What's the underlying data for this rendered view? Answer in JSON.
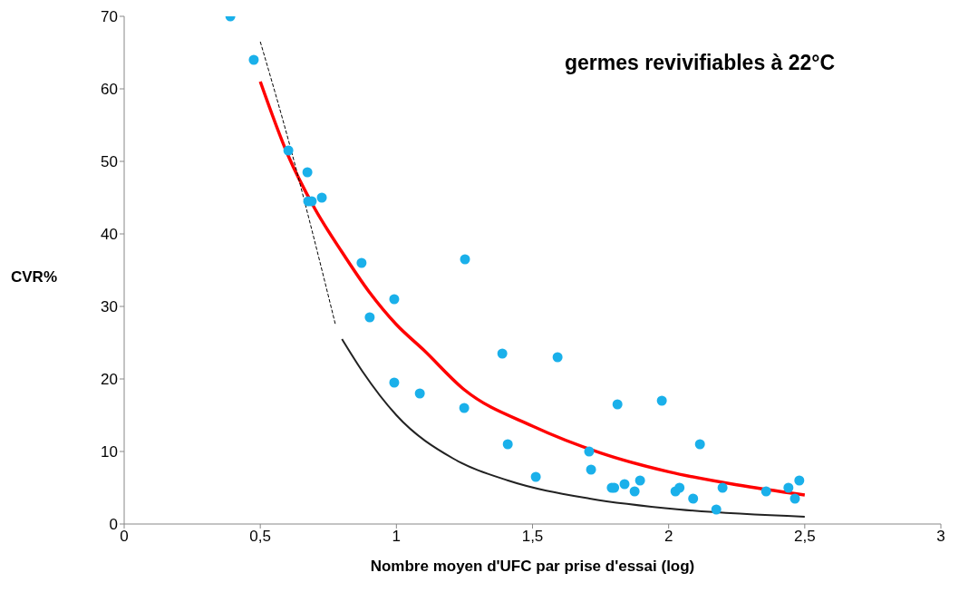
{
  "chart_data": {
    "type": "scatter",
    "title": "germes revivifiables à 22°C",
    "xlabel": "Nombre moyen d'UFC par prise d'essai (log)",
    "ylabel": "CVR%",
    "xlim": [
      0,
      3
    ],
    "xticks": [
      0,
      {
        "value": 0.5,
        "label": "0,5"
      },
      1,
      {
        "value": 1.5,
        "label": "1,5"
      },
      2,
      {
        "value": 2.5,
        "label": "2,5"
      },
      3
    ],
    "ylim": [
      0,
      70
    ],
    "yticks": [
      0,
      10,
      20,
      30,
      40,
      50,
      60,
      70
    ],
    "grid": false,
    "legend": false,
    "series": [
      {
        "color": "#1ab0ea",
        "marker": "circle",
        "x": [
          0.39,
          0.476,
          0.603,
          0.673,
          0.676,
          0.689,
          0.726,
          0.872,
          0.992,
          0.902,
          0.992,
          1.086,
          1.252,
          1.249,
          1.389,
          1.409,
          1.512,
          1.592,
          1.708,
          1.715,
          1.791,
          1.8,
          1.812,
          1.838,
          1.875,
          1.895,
          1.975,
          2.025,
          2.04,
          2.09,
          2.115,
          2.175,
          2.198,
          2.358,
          2.44,
          2.464,
          2.48
        ],
        "values": [
          70,
          64,
          51.5,
          48.5,
          44.5,
          44.5,
          45,
          36,
          31,
          28.5,
          19.5,
          18,
          36.5,
          16,
          23.5,
          11,
          6.5,
          23,
          10,
          7.5,
          5,
          5,
          16.5,
          5.5,
          4.5,
          6,
          17,
          4.5,
          5,
          3.5,
          11,
          2,
          5,
          4.5,
          5,
          3.5,
          6
        ]
      },
      {
        "type": "line",
        "color": "#ff0000",
        "marker": "none",
        "line_style": "solid",
        "x": [
          0.5,
          0.6,
          0.7,
          0.8,
          0.9,
          1.0,
          1.1,
          1.25,
          1.5,
          1.75,
          2.0,
          2.25,
          2.5
        ],
        "values": [
          61,
          51,
          43.5,
          37.5,
          32,
          27.5,
          24,
          18.5,
          13.5,
          9.8,
          7.2,
          5.4,
          4
        ]
      },
      {
        "type": "line",
        "color": "#000000",
        "marker": "none",
        "line_style": "dashed",
        "x": [
          0.5,
          0.61,
          0.693,
          0.776
        ],
        "values": [
          66.5,
          52,
          40,
          27.5
        ]
      },
      {
        "type": "line",
        "color": "#222222",
        "marker": "none",
        "line_style": "solid",
        "x": [
          0.8,
          0.876,
          1.0,
          1.21,
          1.41,
          1.71,
          2.04,
          2.5
        ],
        "values": [
          25.5,
          21,
          15,
          9,
          6,
          3.5,
          2,
          1
        ]
      }
    ]
  }
}
